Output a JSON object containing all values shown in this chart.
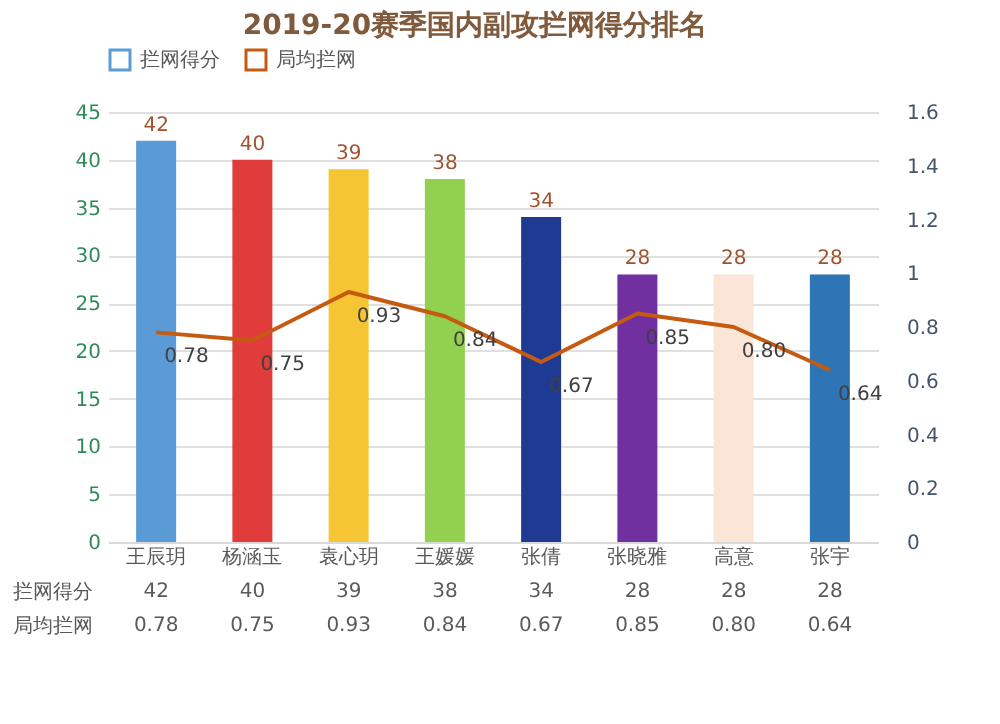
{
  "chart_data": {
    "type": "bar",
    "title": "2019-20赛季国内副攻拦网得分排名",
    "categories": [
      "王辰玥",
      "杨涵玉",
      "袁心玥",
      "王媛媛",
      "张倩",
      "张晓雅",
      "高意",
      "张宇"
    ],
    "series": [
      {
        "name": "拦网得分",
        "color": "#5b9bd5",
        "colors": [
          "#5b9bd5",
          "#e03c3c",
          "#f5c533",
          "#92d050",
          "#1f3a93",
          "#7030a0",
          "#fbe5d6",
          "#2e75b6"
        ],
        "values": [
          42,
          40,
          39,
          38,
          34,
          28,
          28,
          28
        ],
        "value_labels": [
          "42",
          "40",
          "39",
          "38",
          "34",
          "28",
          "28",
          "28"
        ]
      },
      {
        "name": "局均拦网",
        "type": "line",
        "axis": "y2",
        "color": "#c55a11",
        "values": [
          0.78,
          0.75,
          0.93,
          0.84,
          0.67,
          0.85,
          0.8,
          0.64
        ],
        "value_labels": [
          "0.78",
          "0.75",
          "0.93",
          "0.84",
          "0.67",
          "0.85",
          "0.80",
          "0.64"
        ]
      }
    ],
    "ylim": [
      0,
      45
    ],
    "yticks": [
      0,
      5,
      10,
      15,
      20,
      25,
      30,
      35,
      40,
      45
    ],
    "y2lim": [
      0,
      1.6
    ],
    "y2ticks": [
      0,
      0.2,
      0.4,
      0.6,
      0.8,
      1,
      1.2,
      1.4,
      1.6
    ],
    "grid": "y",
    "legend": "top",
    "line_style": "solid",
    "marker": "none"
  }
}
